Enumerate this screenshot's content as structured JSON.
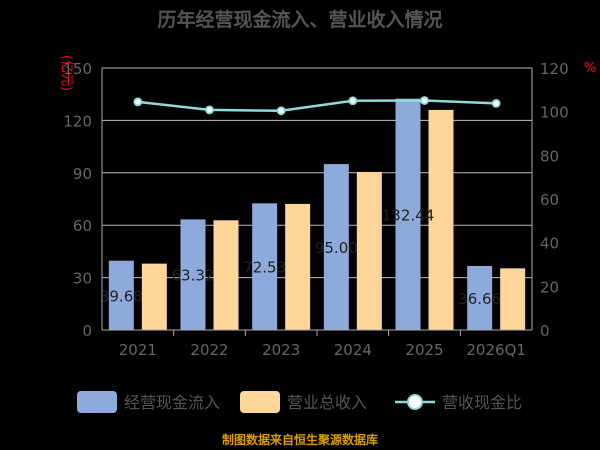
{
  "chart_data": {
    "type": "bar",
    "title": "历年经营现金流入、营业收入情况",
    "left_unit": "(亿元)",
    "right_unit": "%",
    "categories": [
      "2021",
      "2022",
      "2023",
      "2024",
      "2025",
      "2026Q1"
    ],
    "series": [
      {
        "name": "经营现金流入",
        "type": "bar",
        "axis": "left",
        "color": "#8eaadb",
        "values": [
          39.68,
          63.32,
          72.53,
          95.0,
          132.44,
          36.66
        ],
        "labels": [
          "39.68",
          "63.32",
          "72.53",
          "95.00",
          "132.44",
          "36.66"
        ]
      },
      {
        "name": "营业总收入",
        "type": "bar",
        "axis": "left",
        "color": "#ffd699",
        "values": [
          38.0,
          62.8,
          72.2,
          90.5,
          126.0,
          35.3
        ]
      },
      {
        "name": "营收现金比",
        "type": "line",
        "axis": "right",
        "color": "#8fdada",
        "values": [
          104.5,
          100.8,
          100.4,
          105.0,
          105.1,
          103.8
        ]
      }
    ],
    "ylim_left": [
      0,
      150
    ],
    "yticks_left": [
      "0",
      "30",
      "60",
      "90",
      "120",
      "150"
    ],
    "ylim_right": [
      0,
      120
    ],
    "yticks_right": [
      "0",
      "20",
      "40",
      "60",
      "80",
      "100",
      "120"
    ],
    "grid": true,
    "legend_position": "bottom",
    "source": "制图数据来自恒生聚源数据库"
  }
}
